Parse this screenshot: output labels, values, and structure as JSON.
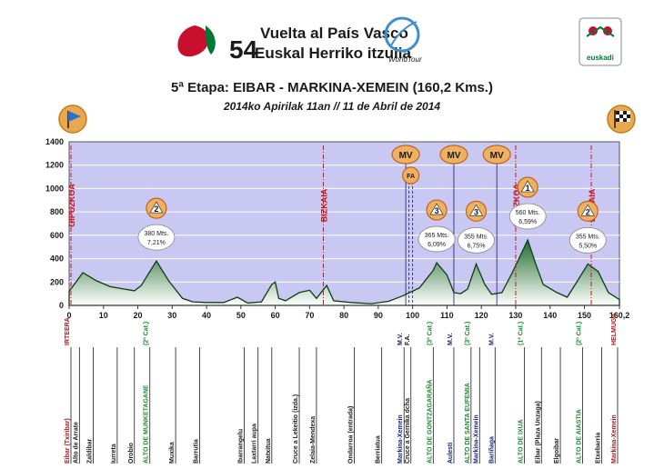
{
  "header": {
    "logo_number": "54",
    "logo_line1": "Vuelta al País Vasco",
    "logo_line2": "Euskal Herriko itzulia",
    "worldtour": "WorldTour",
    "sponsor": "euskadi",
    "title": "5ª Etapa: EIBAR - MARKINA-XEMEIN (160,2 Kms.)",
    "subtitle": "2014ko Apirilak 11an // 11 de Abril de 2014"
  },
  "chart_data": {
    "type": "area",
    "ylim": [
      0,
      1400
    ],
    "xlim": [
      0,
      160.2
    ],
    "yticks": [
      "0",
      "200",
      "400",
      "600",
      "800",
      "1000",
      "1200",
      "1400"
    ],
    "xticks": [
      "0",
      "10",
      "20",
      "30",
      "40",
      "50",
      "60",
      "70",
      "80",
      "90",
      "100",
      "110",
      "120",
      "130",
      "140",
      "150",
      "160,2"
    ],
    "profile": [
      [
        0,
        120
      ],
      [
        4,
        280
      ],
      [
        8,
        210
      ],
      [
        12,
        160
      ],
      [
        16,
        140
      ],
      [
        19,
        125
      ],
      [
        21,
        170
      ],
      [
        25.4,
        380
      ],
      [
        29,
        210
      ],
      [
        33,
        60
      ],
      [
        36,
        30
      ],
      [
        40,
        25
      ],
      [
        45,
        25
      ],
      [
        49,
        70
      ],
      [
        52,
        20
      ],
      [
        56,
        30
      ],
      [
        59,
        180
      ],
      [
        60,
        200
      ],
      [
        61,
        60
      ],
      [
        63,
        40
      ],
      [
        67,
        110
      ],
      [
        70,
        130
      ],
      [
        72,
        60
      ],
      [
        75,
        170
      ],
      [
        77,
        40
      ],
      [
        82,
        25
      ],
      [
        88,
        15
      ],
      [
        93,
        35
      ],
      [
        97,
        80
      ],
      [
        102,
        150
      ],
      [
        106,
        300
      ],
      [
        107,
        365
      ],
      [
        110,
        260
      ],
      [
        112,
        110
      ],
      [
        114,
        100
      ],
      [
        116,
        140
      ],
      [
        118.5,
        355
      ],
      [
        121,
        180
      ],
      [
        123,
        95
      ],
      [
        126,
        110
      ],
      [
        129,
        280
      ],
      [
        133.5,
        560
      ],
      [
        136,
        340
      ],
      [
        138,
        180
      ],
      [
        142,
        110
      ],
      [
        145,
        70
      ],
      [
        148,
        210
      ],
      [
        151,
        355
      ],
      [
        154,
        290
      ],
      [
        157,
        110
      ],
      [
        160.2,
        50
      ]
    ],
    "regions": [
      {
        "label": "GIPUZKOA",
        "x": 0
      },
      {
        "label": "BIZKAIA",
        "x": 74
      },
      {
        "label": "GIPUZKOA",
        "x": 130
      },
      {
        "label": "BIZKAIA",
        "x": 152
      }
    ],
    "climbs": [
      {
        "cat": "2",
        "x": 25.4,
        "alt": "380 Mts.",
        "grade": "7,21%"
      },
      {
        "cat": "3",
        "x": 107,
        "alt": "365 Mts.",
        "grade": "6,09%"
      },
      {
        "cat": "3",
        "x": 118.5,
        "alt": "355 Mts.",
        "grade": "6,75%"
      },
      {
        "cat": "1",
        "x": 133.5,
        "alt": "560 Mts.",
        "grade": "6,59%"
      },
      {
        "cat": "2",
        "x": 151,
        "alt": "355 Mts.",
        "grade": "5,50%"
      }
    ],
    "sprints": [
      {
        "label": "MV",
        "x": 98
      },
      {
        "label": "MV",
        "x": 112
      },
      {
        "label": "MV",
        "x": 124.5
      }
    ],
    "feed_marker_label": "FA",
    "feed_marker_x": 100,
    "markers": [
      {
        "x": 0,
        "top": "IRTEERA",
        "bottom": "Eibar (Txiribar)",
        "color": "#b0161d"
      },
      {
        "x": 3,
        "top": "",
        "bottom": "Alto de Arrate",
        "color": "#1a1a1a"
      },
      {
        "x": 7,
        "top": "",
        "bottom": "Zaldibar",
        "color": "#1a1a1a"
      },
      {
        "x": 14,
        "top": "",
        "bottom": "Iurreta",
        "color": "#1a1a1a"
      },
      {
        "x": 19,
        "top": "",
        "bottom": "Orobio",
        "color": "#1a1a1a"
      },
      {
        "x": 23.5,
        "top": "(2º Cat.)",
        "bottom": "ALTO DE MUNKETAGANE",
        "color": "#1c8a2e"
      },
      {
        "x": 31,
        "top": "",
        "bottom": "Muxika",
        "color": "#1a1a1a"
      },
      {
        "x": 38,
        "top": "",
        "bottom": "Barrutia",
        "color": "#1a1a1a"
      },
      {
        "x": 51,
        "top": "",
        "bottom": "Ibarrangelu",
        "color": "#1a1a1a"
      },
      {
        "x": 55,
        "top": "",
        "bottom": "Laxtarri aupa",
        "color": "#1a1a1a"
      },
      {
        "x": 59,
        "top": "",
        "bottom": "Natxitua",
        "color": "#1a1a1a"
      },
      {
        "x": 67,
        "top": "",
        "bottom": "Cruce a Lekeitio (izda.)",
        "color": "#1a1a1a"
      },
      {
        "x": 72,
        "top": "",
        "bottom": "Zelaia-Mendexa",
        "color": "#1a1a1a"
      },
      {
        "x": 83,
        "top": "",
        "bottom": "Ondarroa (entrada)",
        "color": "#1a1a1a"
      },
      {
        "x": 91,
        "top": "",
        "bottom": "Berriatua",
        "color": "#1a1a1a"
      },
      {
        "x": 97.5,
        "top": "M.V.",
        "bottom": "Markina-Xemein",
        "color": "#1a237e"
      },
      {
        "x": 99.5,
        "top": "F.A.",
        "bottom": "Cruce a Gernika dcha",
        "color": "#1a1a1a"
      },
      {
        "x": 106,
        "top": "(3º Cat.)",
        "bottom": "ALTO DE GONTZAGARAÑA",
        "color": "#1c8a2e"
      },
      {
        "x": 112,
        "top": "M.V.",
        "bottom": "Aulesti",
        "color": "#1a237e"
      },
      {
        "x": 117,
        "top": "(3º Cat.)",
        "bottom": "ALTO DE SANTA EUFEMIA",
        "color": "#1c8a2e"
      },
      {
        "x": 119.5,
        "top": "",
        "bottom": "Markina-Xemein",
        "color": "#1a237e"
      },
      {
        "x": 124,
        "top": "M.V.",
        "bottom": "Bariñaga",
        "color": "#1a237e"
      },
      {
        "x": 132.5,
        "top": "(1º Cat.)",
        "bottom": "ALTO DE IXUA",
        "color": "#1c8a2e"
      },
      {
        "x": 137.5,
        "top": "",
        "bottom": "Eibar (Plaza Unzaga)",
        "color": "#1a1a1a"
      },
      {
        "x": 143,
        "top": "",
        "bottom": "Elgoibar",
        "color": "#1a1a1a"
      },
      {
        "x": 149.5,
        "top": "(2º Cat.)",
        "bottom": "ALTO DE AIASTIA",
        "color": "#1c8a2e"
      },
      {
        "x": 155,
        "top": "",
        "bottom": "Etxebarria",
        "color": "#1a1a1a"
      },
      {
        "x": 160.2,
        "top": "HELMUGA",
        "bottom": "Markina-Xemein",
        "color": "#b0161d"
      }
    ],
    "colors": {
      "plot_bg": "#c8c8f2",
      "fill_top": "#1f6b2c",
      "fill_bottom": "#ffffff",
      "region": "#c4161c",
      "grid": "#ffffff"
    }
  }
}
